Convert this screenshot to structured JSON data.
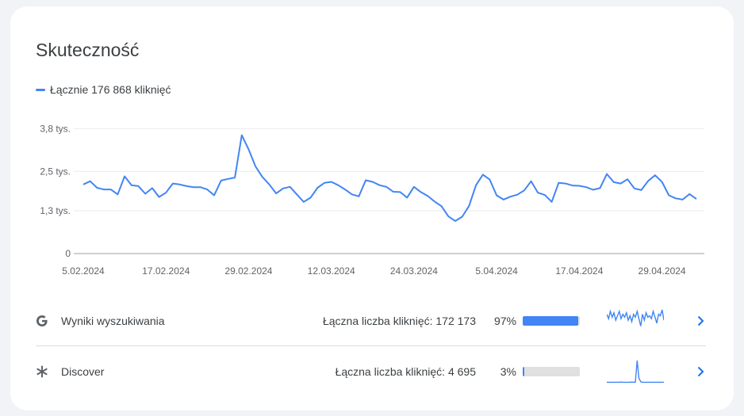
{
  "card": {
    "title": "Skuteczność"
  },
  "legend": {
    "label": "Łącznie 176 868 kliknięć",
    "color": "#4285f4"
  },
  "chart_data": {
    "type": "line",
    "title": "",
    "xlabel": "",
    "ylabel": "",
    "ylim": [
      0,
      4000
    ],
    "yticks": [
      {
        "value": 0,
        "label": "0"
      },
      {
        "value": 1300,
        "label": "1,3 tys."
      },
      {
        "value": 2500,
        "label": "2,5 tys."
      },
      {
        "value": 3800,
        "label": "3,8 tys."
      }
    ],
    "x_start": "2024-02-05",
    "xtick_labels": [
      {
        "date": "2024-02-05",
        "label": "5.02.2024"
      },
      {
        "date": "2024-02-17",
        "label": "17.02.2024"
      },
      {
        "date": "2024-02-29",
        "label": "29.02.2024"
      },
      {
        "date": "2024-03-12",
        "label": "12.03.2024"
      },
      {
        "date": "2024-03-24",
        "label": "24.03.2024"
      },
      {
        "date": "2024-04-05",
        "label": "5.04.2024"
      },
      {
        "date": "2024-04-17",
        "label": "17.04.2024"
      },
      {
        "date": "2024-04-29",
        "label": "29.04.2024"
      }
    ],
    "grid": true,
    "series": [
      {
        "name": "Łącznie 176 868 kliknięć",
        "color": "#4285f4",
        "values": [
          2100,
          2200,
          2000,
          1950,
          1950,
          1800,
          2350,
          2080,
          2050,
          1820,
          1990,
          1720,
          1850,
          2130,
          2100,
          2050,
          2020,
          2020,
          1950,
          1770,
          2220,
          2270,
          2310,
          3600,
          3170,
          2650,
          2330,
          2100,
          1830,
          1980,
          2030,
          1800,
          1570,
          1700,
          2000,
          2150,
          2180,
          2080,
          1950,
          1800,
          1740,
          2230,
          2180,
          2080,
          2030,
          1880,
          1870,
          1700,
          2030,
          1870,
          1750,
          1580,
          1440,
          1130,
          990,
          1120,
          1450,
          2080,
          2400,
          2250,
          1770,
          1640,
          1730,
          1790,
          1920,
          2200,
          1850,
          1780,
          1570,
          2150,
          2130,
          2070,
          2060,
          2020,
          1940,
          1990,
          2420,
          2170,
          2130,
          2260,
          1980,
          1930,
          2210,
          2380,
          2180,
          1770,
          1680,
          1640,
          1810,
          1660
        ]
      }
    ]
  },
  "rows": [
    {
      "icon": "google-g-icon",
      "name": "Wyniki wyszukiwania",
      "clicks": "Łączna liczba kliknięć: 172 173",
      "percent_label": "97%",
      "percent": 97,
      "bar_color": "#4285f4",
      "sparkline": [
        60,
        45,
        70,
        50,
        65,
        40,
        55,
        70,
        45,
        60,
        50,
        65,
        40,
        55,
        35,
        60,
        50,
        70,
        45,
        20,
        60,
        40,
        65,
        50,
        55,
        45,
        70,
        50,
        30,
        60,
        55,
        75,
        40
      ]
    },
    {
      "icon": "asterisk-icon",
      "name": "Discover",
      "clicks": "Łączna liczba kliknięć: 4 695",
      "percent_label": "3%",
      "percent": 3,
      "bar_color": "#4285f4",
      "sparkline": [
        2,
        2,
        2,
        2,
        2,
        2,
        2,
        2,
        3,
        2,
        2,
        2,
        2,
        2,
        3,
        2,
        2,
        95,
        20,
        4,
        2,
        2,
        2,
        2,
        2,
        2,
        2,
        2,
        2,
        2,
        2,
        2,
        2
      ]
    }
  ]
}
